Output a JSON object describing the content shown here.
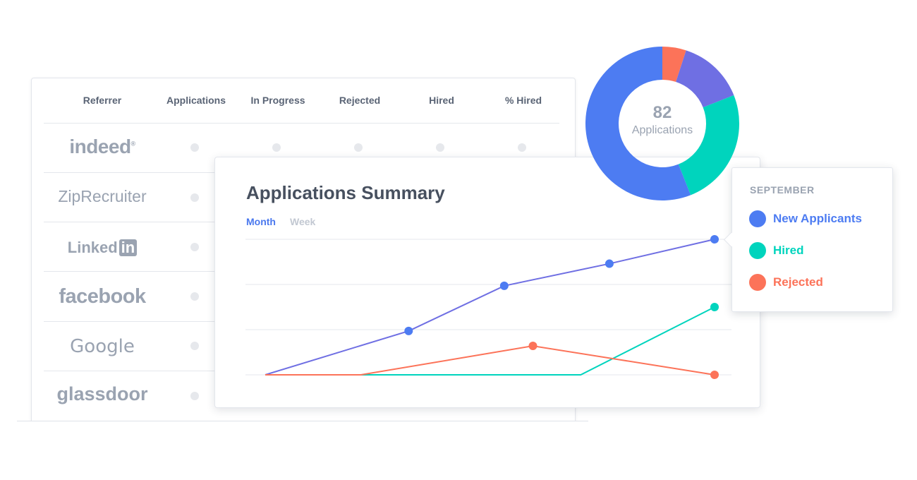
{
  "table": {
    "headers": [
      "Referrer",
      "Applications",
      "In Progress",
      "Rejected",
      "Hired",
      "% Hired"
    ],
    "referrers": [
      {
        "name": "indeed",
        "mark": "®"
      },
      {
        "name": "ZipRecruiter"
      },
      {
        "name": "Linked",
        "mark": "in"
      },
      {
        "name": "facebook"
      },
      {
        "name": "Google"
      },
      {
        "name": "glassdoor"
      }
    ]
  },
  "summary": {
    "title": "Applications Summary",
    "tabs": {
      "month": "Month",
      "week": "Week"
    }
  },
  "donut": {
    "value": "82",
    "label": "Applications",
    "slices": [
      {
        "color": "#fc7359",
        "value": 5
      },
      {
        "color": "#6f6fe3",
        "value": 14
      },
      {
        "color": "#00d4bd",
        "value": 25
      },
      {
        "color": "#4d7cf2",
        "value": 56
      }
    ]
  },
  "legend": {
    "month": "SEPTEMBER",
    "items": [
      {
        "label": "New Applicants",
        "color": "#4d7cf2"
      },
      {
        "label": "Hired",
        "color": "#00d4bd"
      },
      {
        "label": "Rejected",
        "color": "#fc7359"
      }
    ]
  },
  "chart_data": {
    "type": "line",
    "x": [
      1,
      2,
      3,
      4,
      5,
      6
    ],
    "ylim": [
      0,
      3
    ],
    "grid": true,
    "series": [
      {
        "name": "New Applicants",
        "color": "#6f6fe3",
        "marker_color": "#4d7cf2",
        "values": [
          0,
          0.97,
          1.97,
          2.46,
          3.0
        ],
        "x": [
          1,
          2.5,
          3.5,
          4.6,
          5.7
        ],
        "markers": [
          1,
          2,
          3,
          4
        ]
      },
      {
        "name": "Hired",
        "color": "#00d4bd",
        "marker_color": "#00d4bd",
        "values": [
          0,
          0,
          0,
          0,
          1.5
        ],
        "x": [
          1,
          2,
          3,
          4.3,
          5.7
        ],
        "markers": [
          4
        ]
      },
      {
        "name": "Rejected",
        "color": "#fc7359",
        "marker_color": "#fc7359",
        "values": [
          0,
          0,
          0.64,
          0
        ],
        "x": [
          1,
          2,
          3.8,
          5.7
        ],
        "markers": [
          2,
          3
        ]
      }
    ]
  }
}
